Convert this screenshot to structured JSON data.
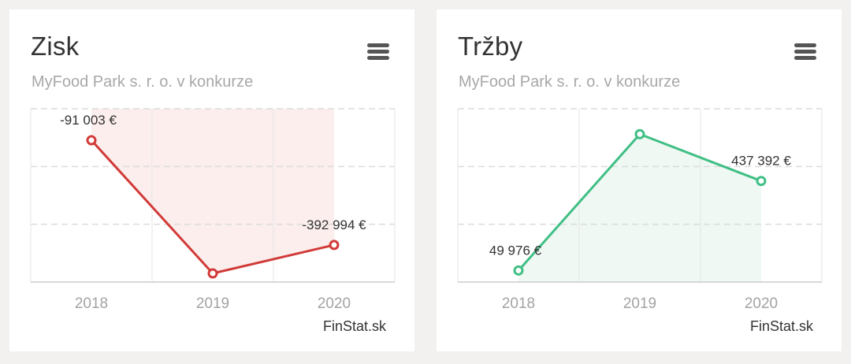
{
  "cards": [
    {
      "title": "Zisk",
      "subtitle": "MyFood Park s. r. o. v konkurze",
      "credit": "FinStat.sk",
      "color": "#d13a37",
      "fill_color": "#fbeeed"
    },
    {
      "title": "Tržby",
      "subtitle": "MyFood Park s. r. o. v konkurze",
      "credit": "FinStat.sk",
      "color": "#40bf85",
      "fill_color": "#eff8f3"
    }
  ],
  "chart_data": [
    {
      "type": "line",
      "categories": [
        "2018",
        "2019",
        "2020"
      ],
      "series": [
        {
          "values": [
            -91003,
            -475000,
            -392994
          ]
        }
      ],
      "data_labels": [
        "-91 003 €",
        null,
        "-392 994 €"
      ],
      "ylim": [
        -500000,
        0
      ],
      "grid": true,
      "fill": "area"
    },
    {
      "type": "line",
      "categories": [
        "2018",
        "2019",
        "2020"
      ],
      "series": [
        {
          "values": [
            49976,
            640000,
            437392
          ]
        }
      ],
      "data_labels": [
        "49 976 €",
        null,
        "437 392 €"
      ],
      "ylim": [
        0,
        750000
      ],
      "grid": true,
      "fill": "area"
    }
  ]
}
